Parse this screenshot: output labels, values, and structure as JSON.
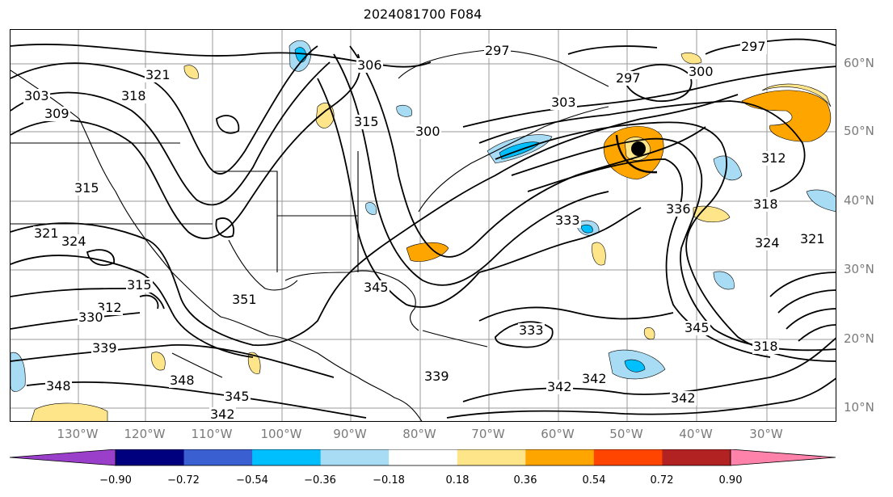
{
  "title": "2024081700 F084",
  "lon_labels": [
    "130°W",
    "120°W",
    "110°W",
    "100°W",
    "90°W",
    "80°W",
    "70°W",
    "60°W",
    "50°W",
    "40°W",
    "30°W"
  ],
  "lat_labels": [
    "60°N",
    "50°N",
    "40°N",
    "30°N",
    "20°N",
    "10°N"
  ],
  "colorbar": {
    "ticks": [
      "−0.90",
      "−0.72",
      "−0.54",
      "−0.36",
      "−0.18",
      "0.18",
      "0.36",
      "0.54",
      "0.72",
      "0.90"
    ],
    "colors": [
      "#9a3fc9",
      "#00007f",
      "#3a5fd0",
      "#00bfff",
      "#a8dcf5",
      "#ffffff",
      "#ffe58a",
      "#ffa500",
      "#ff4500",
      "#b22222",
      "#ff82ab"
    ]
  },
  "contour_labels": [
    {
      "text": "297"
    },
    {
      "text": "297"
    },
    {
      "text": "297"
    },
    {
      "text": "300"
    },
    {
      "text": "300"
    },
    {
      "text": "303"
    },
    {
      "text": "303"
    },
    {
      "text": "306"
    },
    {
      "text": "309"
    },
    {
      "text": "312"
    },
    {
      "text": "312"
    },
    {
      "text": "315"
    },
    {
      "text": "315"
    },
    {
      "text": "315"
    },
    {
      "text": "318"
    },
    {
      "text": "318"
    },
    {
      "text": "318"
    },
    {
      "text": "321"
    },
    {
      "text": "321"
    },
    {
      "text": "321"
    },
    {
      "text": "324"
    },
    {
      "text": "324"
    },
    {
      "text": "330"
    },
    {
      "text": "333"
    },
    {
      "text": "333"
    },
    {
      "text": "336"
    },
    {
      "text": "339"
    },
    {
      "text": "339"
    },
    {
      "text": "342"
    },
    {
      "text": "342"
    },
    {
      "text": "342"
    },
    {
      "text": "342"
    },
    {
      "text": "345"
    },
    {
      "text": "345"
    },
    {
      "text": "345"
    },
    {
      "text": "348"
    },
    {
      "text": "348"
    },
    {
      "text": "351"
    }
  ],
  "marker": "storm-center-dot"
}
